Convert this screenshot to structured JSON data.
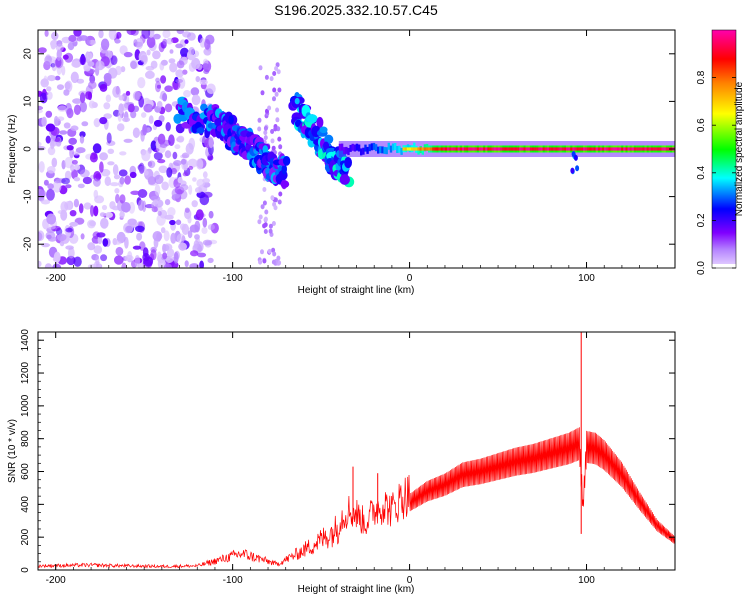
{
  "title": "S196.2025.332.10.57.C45",
  "chart_data": [
    {
      "type": "heatmap",
      "xlabel": "Height of straight line (km)",
      "ylabel": "Frequency (Hz)",
      "xlim": [
        -210,
        150
      ],
      "ylim": [
        -25,
        25
      ],
      "x_ticks": [
        -200,
        -100,
        0,
        100
      ],
      "x_tick_labels": [
        "-200",
        "-100",
        "0",
        "100"
      ],
      "y_ticks": [
        20,
        10,
        0,
        -10,
        -20
      ],
      "y_tick_labels": [
        "20",
        "10",
        "0",
        "-10",
        "-20"
      ],
      "colorbar": {
        "label": "Normalized spectral amplitude",
        "range": [
          0,
          1
        ],
        "ticks": [
          0.0,
          0.2,
          0.4,
          0.6,
          0.8
        ],
        "tick_labels": [
          "0.0",
          "0.2",
          "0.4",
          "0.6",
          "0.8"
        ],
        "colors": [
          "#e8d8ff",
          "#8000ff",
          "#0000ff",
          "#00ffff",
          "#00ff00",
          "#ffff00",
          "#ff8000",
          "#ff0000",
          "#ff00aa"
        ]
      },
      "features": {
        "noise_region": {
          "x_range": [
            -210,
            -110
          ],
          "freq_range": [
            -25,
            25
          ],
          "amplitude": [
            0.02,
            0.2
          ]
        },
        "descending_tracks": [
          {
            "x": [
              -130,
              -110,
              -100,
              -90,
              -80,
              -70
            ],
            "freq": [
              8,
              6,
              3,
              0,
              -3,
              -5
            ],
            "amplitude": 0.25
          },
          {
            "x": [
              -65,
              -55,
              -45,
              -35
            ],
            "freq": [
              9,
              4,
              -1,
              -6
            ],
            "amplitude": 0.3
          }
        ],
        "carrier_line": {
          "x_range": [
            -40,
            150
          ],
          "freq": 0,
          "amplitude_start": 0.3,
          "amplitude_end": 0.95
        }
      }
    },
    {
      "type": "line",
      "xlabel": "Height of straight line (km)",
      "ylabel": "SNR (10 * v/v)",
      "xlim": [
        -210,
        150
      ],
      "ylim": [
        0,
        1450
      ],
      "x_ticks": [
        -200,
        -100,
        0,
        100
      ],
      "x_tick_labels": [
        "-200",
        "-100",
        "0",
        "100"
      ],
      "y_ticks": [
        0,
        200,
        400,
        600,
        800,
        1000,
        1200,
        1400
      ],
      "y_tick_labels": [
        "0",
        "200",
        "400",
        "600",
        "800",
        "1000",
        "1200",
        "1400"
      ],
      "series": [
        {
          "name": "SNR",
          "color": "#ff0000",
          "x": [
            -210,
            -180,
            -160,
            -140,
            -120,
            -108,
            -95,
            -85,
            -75,
            -65,
            -55,
            -45,
            -40,
            -35,
            -30,
            -25,
            -20,
            -15,
            -10,
            -5,
            0,
            10,
            20,
            30,
            40,
            50,
            60,
            70,
            80,
            90,
            96,
            98,
            100,
            105,
            110,
            120,
            130,
            140,
            150
          ],
          "y": [
            25,
            30,
            25,
            22,
            25,
            60,
            100,
            70,
            35,
            90,
            150,
            220,
            260,
            320,
            300,
            250,
            320,
            350,
            320,
            380,
            410,
            480,
            520,
            580,
            600,
            630,
            660,
            680,
            710,
            740,
            770,
            380,
            750,
            740,
            700,
            580,
            420,
            270,
            180
          ],
          "spikes": [
            {
              "x": -32,
              "y": 630
            },
            {
              "x": -18,
              "y": 590
            },
            {
              "x": 97,
              "y": 1450
            },
            {
              "x": 97,
              "y": 220
            }
          ]
        }
      ]
    }
  ]
}
